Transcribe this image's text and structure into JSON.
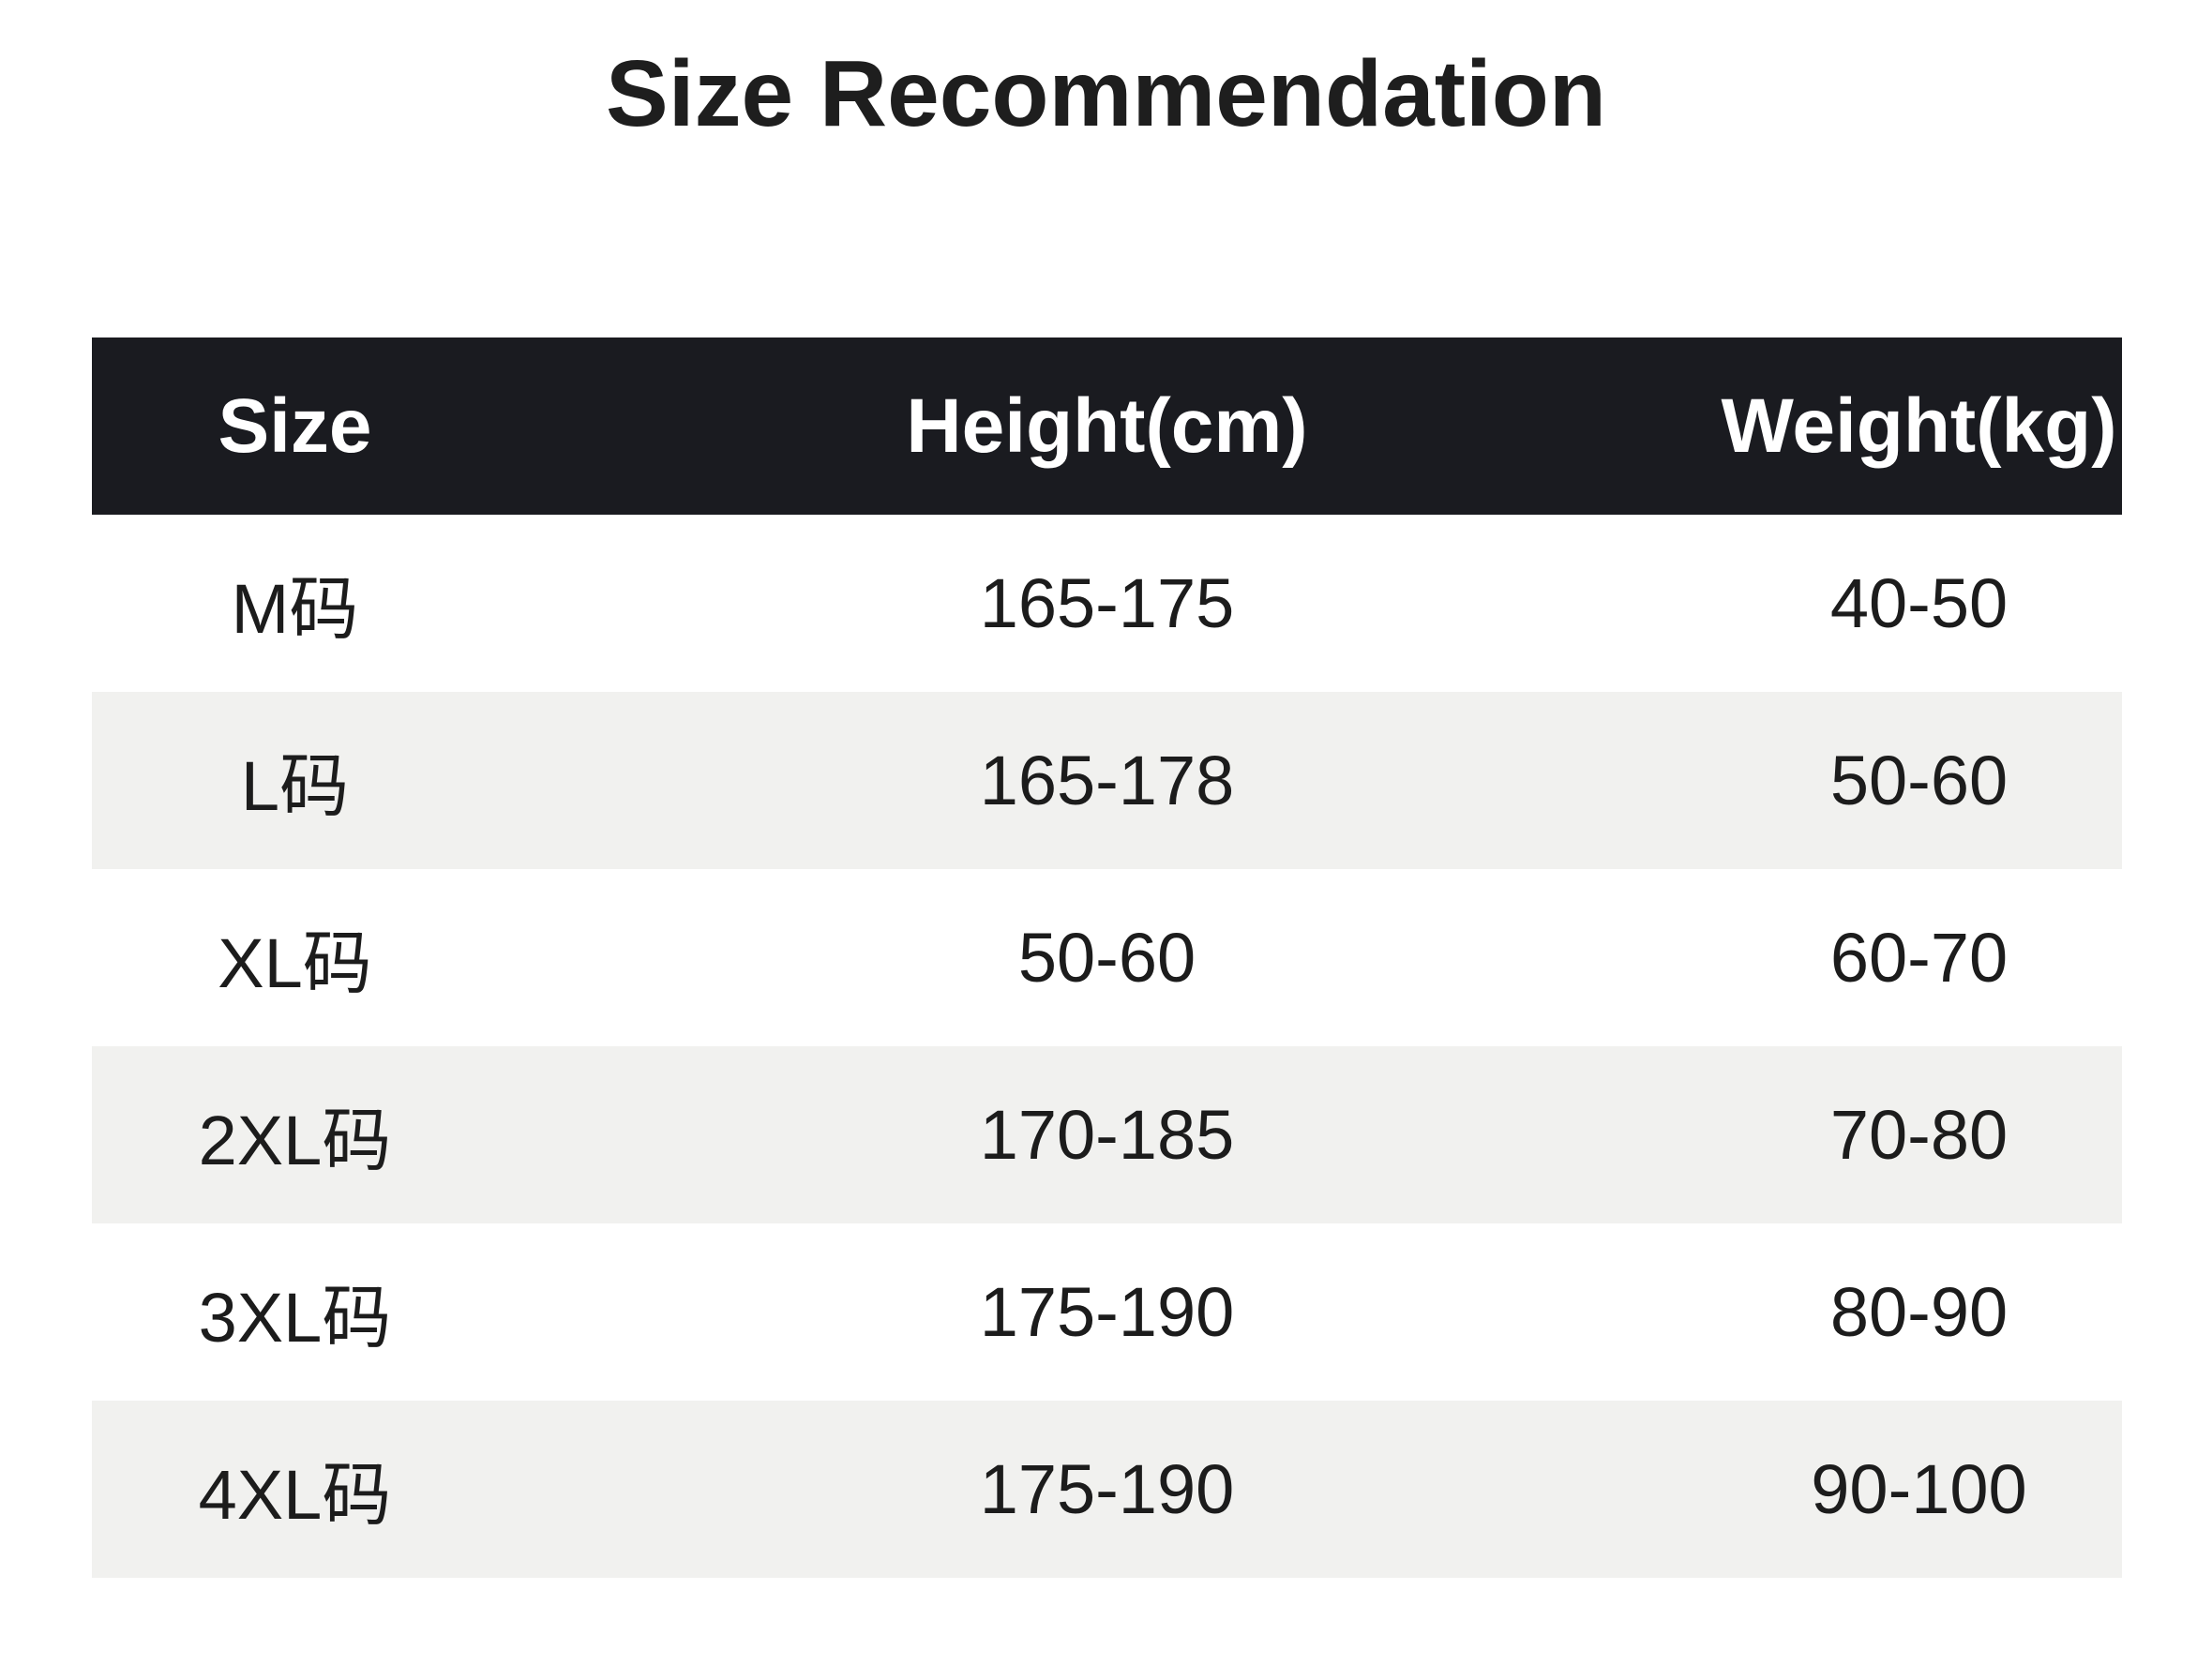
{
  "title": "Size Recommendation",
  "chart_data": {
    "type": "table",
    "title": "Size Recommendation",
    "columns": [
      "Size",
      "Height(cm)",
      "Weight(kg)"
    ],
    "rows": [
      [
        "M码",
        "165-175",
        "40-50"
      ],
      [
        "L码",
        "165-178",
        "50-60"
      ],
      [
        "XL码",
        "50-60",
        "60-70"
      ],
      [
        "2XL码",
        "170-185",
        "70-80"
      ],
      [
        "3XL码",
        "175-190",
        "80-90"
      ],
      [
        "4XL码",
        "175-190",
        "90-100"
      ]
    ],
    "layout": {
      "header_style": "dark-bar",
      "zebra_striping": true,
      "striped_row_indexes": [
        1,
        3,
        5
      ],
      "column_alignment": "center"
    }
  },
  "colors": {
    "background": "#ffffff",
    "header_bg": "#1a1b20",
    "header_text": "#ffffff",
    "row_plain": "#ffffff",
    "row_stripe": "#f1f1ef",
    "body_text": "#1c1c1c",
    "title_text": "#1e1e1e"
  }
}
